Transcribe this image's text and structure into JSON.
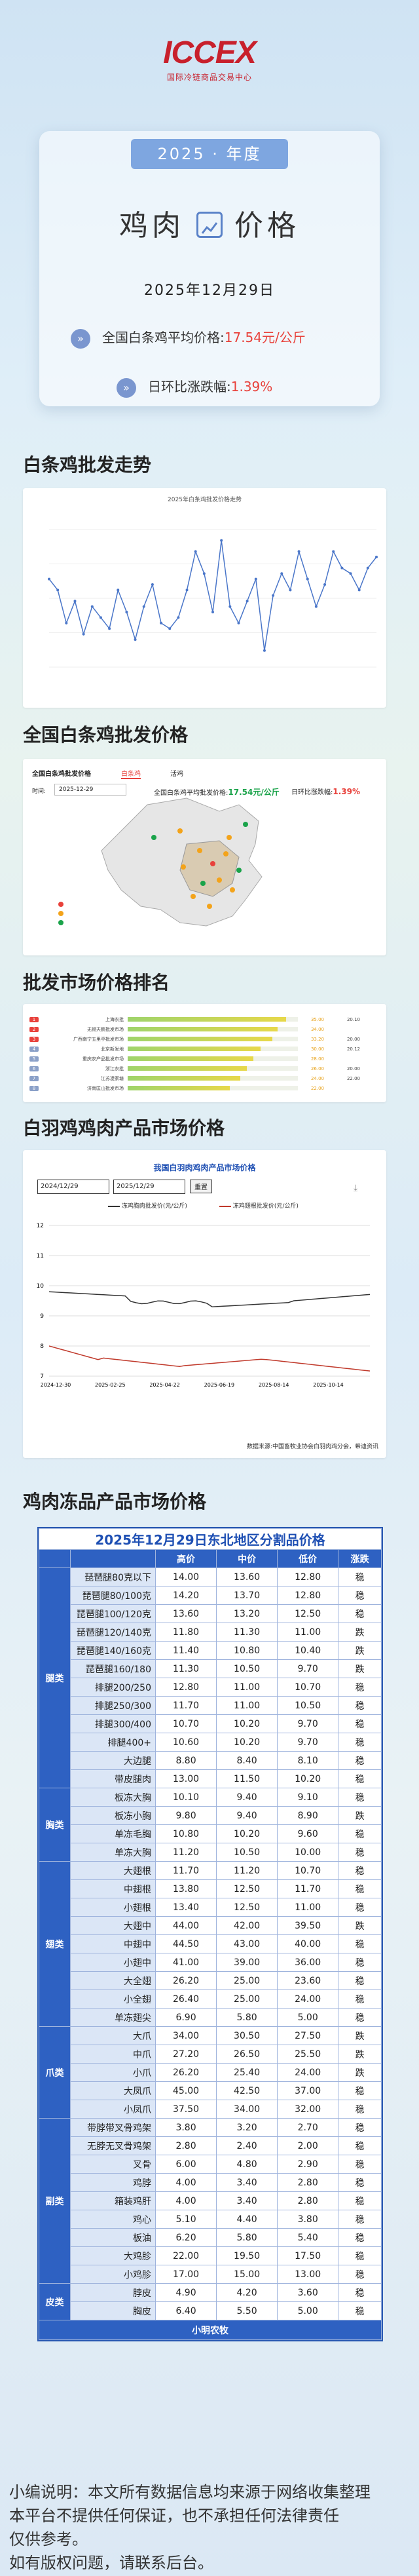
{
  "logo": {
    "mark": "ICCEX",
    "sub": "国际冷链商品交易中心"
  },
  "header": {
    "year_label": "2025 · 年度",
    "title_left": "鸡肉",
    "title_right": "价格",
    "date": "2025年12月29日",
    "avg_label": "全国白条鸡平均价格:",
    "avg_value": "17.54元/公斤",
    "change_label": "日环比涨跌幅:",
    "change_value": "1.39%"
  },
  "sections": {
    "trend": "白条鸡批发走势",
    "national": "全国白条鸡批发价格",
    "ranking": "批发市场价格排名",
    "broiler": "白羽鸡鸡肉产品市场价格",
    "frozen": "鸡肉冻品产品市场价格"
  },
  "trend_chart": {
    "title": "2025年白条鸡批发价格走势",
    "values": [
      17.1,
      16.9,
      16.3,
      16.7,
      16.1,
      16.6,
      16.4,
      16.2,
      16.9,
      16.5,
      16.0,
      16.6,
      17.0,
      16.3,
      16.2,
      16.4,
      16.9,
      17.6,
      17.2,
      16.5,
      17.8,
      16.6,
      16.3,
      16.7,
      17.1,
      15.8,
      16.8,
      17.2,
      16.9,
      17.6,
      17.1,
      16.6,
      17.0,
      17.6,
      17.3,
      17.2,
      16.9,
      17.3,
      17.5
    ]
  },
  "national_panel": {
    "tab_label": "全国白条鸡批发价格",
    "tab_a": "白条鸡",
    "tab_b": "活鸡",
    "date_label": "时间:",
    "date_value": "2025-12-29",
    "avg_label": "全国白条鸡平均批发价格:",
    "avg_value": "17.54元/公斤",
    "change_label": "日环比涨跌幅:",
    "change_value": "1.39%"
  },
  "ranking_panel": {
    "rows": [
      {
        "name": "上海农批",
        "value": "35.00",
        "change": "20.10",
        "fill": 0.93
      },
      {
        "name": "无锡天鹏批发市场",
        "value": "34.00",
        "change": "",
        "fill": 0.88
      },
      {
        "name": "广西南宁五里亭批发市场",
        "value": "33.20",
        "change": "20.00",
        "fill": 0.85
      },
      {
        "name": "北京新发地",
        "value": "30.00",
        "change": "20.12",
        "fill": 0.78
      },
      {
        "name": "重庆农产品批发市场",
        "value": "28.00",
        "change": "",
        "fill": 0.74
      },
      {
        "name": "浙江农批",
        "value": "26.00",
        "change": "20.00",
        "fill": 0.7
      },
      {
        "name": "江苏凌家塘",
        "value": "24.00",
        "change": "22.00",
        "fill": 0.66
      },
      {
        "name": "济南匡山批发市场",
        "value": "22.00",
        "change": "",
        "fill": 0.6
      }
    ]
  },
  "broiler_panel": {
    "title": "我国白羽肉鸡肉产品市场价格",
    "date_from": "2024/12/29",
    "date_to": "2025/12/29",
    "reset": "重置",
    "legend_a": "冻鸡胸肉批发价(元/公斤)",
    "legend_b": "冻鸡翅根批发价(元/公斤)",
    "source": "数据来源:中国畜牧业协会白羽肉鸡分会，希迪资讯",
    "x_ticks": [
      "2024-12-30",
      "2025-02-25",
      "2025-04-22",
      "2025-06-19",
      "2025-08-14",
      "2025-10-14"
    ],
    "y_ticks": [
      "12",
      "11",
      "10",
      "9",
      "8",
      "7"
    ]
  },
  "frozen_table": {
    "title": "2025年12月29日东北地区分割品价格",
    "columns": [
      "高价",
      "中价",
      "低价",
      "涨跌"
    ],
    "groups": [
      {
        "category": "腿类",
        "rows": [
          [
            "琵琶腿80克以下",
            "14.00",
            "13.60",
            "12.80",
            "稳"
          ],
          [
            "琵琶腿80/100克",
            "14.20",
            "13.70",
            "12.80",
            "稳"
          ],
          [
            "琵琶腿100/120克",
            "13.60",
            "13.20",
            "12.50",
            "稳"
          ],
          [
            "琵琶腿120/140克",
            "11.80",
            "11.30",
            "11.00",
            "跌"
          ],
          [
            "琵琶腿140/160克",
            "11.40",
            "10.80",
            "10.40",
            "跌"
          ],
          [
            "琵琶腿160/180",
            "11.30",
            "10.50",
            "9.70",
            "跌"
          ],
          [
            "排腿200/250",
            "12.80",
            "11.00",
            "10.70",
            "稳"
          ],
          [
            "排腿250/300",
            "11.70",
            "11.00",
            "10.50",
            "稳"
          ],
          [
            "排腿300/400",
            "10.70",
            "10.20",
            "9.70",
            "稳"
          ],
          [
            "排腿400+",
            "10.60",
            "10.20",
            "9.70",
            "稳"
          ],
          [
            "大边腿",
            "8.80",
            "8.40",
            "8.10",
            "稳"
          ],
          [
            "带皮腿肉",
            "13.00",
            "11.50",
            "10.20",
            "稳"
          ]
        ]
      },
      {
        "category": "胸类",
        "rows": [
          [
            "板冻大胸",
            "10.10",
            "9.40",
            "9.10",
            "稳"
          ],
          [
            "板冻小胸",
            "9.80",
            "9.40",
            "8.90",
            "跌"
          ],
          [
            "单冻毛胸",
            "10.80",
            "10.20",
            "9.60",
            "稳"
          ],
          [
            "单冻大胸",
            "11.20",
            "10.50",
            "10.00",
            "稳"
          ]
        ]
      },
      {
        "category": "翅类",
        "rows": [
          [
            "大翅根",
            "11.70",
            "11.20",
            "10.70",
            "稳"
          ],
          [
            "中翅根",
            "13.80",
            "12.50",
            "11.70",
            "稳"
          ],
          [
            "小翅根",
            "13.40",
            "12.50",
            "11.00",
            "稳"
          ],
          [
            "大翅中",
            "44.00",
            "42.00",
            "39.50",
            "跌"
          ],
          [
            "中翅中",
            "44.50",
            "43.00",
            "40.00",
            "稳"
          ],
          [
            "小翅中",
            "41.00",
            "39.00",
            "36.00",
            "稳"
          ],
          [
            "大全翅",
            "26.20",
            "25.00",
            "23.60",
            "稳"
          ],
          [
            "小全翅",
            "26.40",
            "25.00",
            "24.00",
            "稳"
          ],
          [
            "单冻翅尖",
            "6.90",
            "5.80",
            "5.00",
            "稳"
          ]
        ]
      },
      {
        "category": "爪类",
        "rows": [
          [
            "大爪",
            "34.00",
            "30.50",
            "27.50",
            "跌"
          ],
          [
            "中爪",
            "27.20",
            "26.50",
            "25.50",
            "跌"
          ],
          [
            "小爪",
            "26.20",
            "25.40",
            "24.00",
            "跌"
          ],
          [
            "大凤爪",
            "45.00",
            "42.50",
            "37.00",
            "稳"
          ],
          [
            "小凤爪",
            "37.50",
            "34.00",
            "32.00",
            "稳"
          ]
        ]
      },
      {
        "category": "副类",
        "rows": [
          [
            "带脖带叉骨鸡架",
            "3.80",
            "3.20",
            "2.70",
            "稳"
          ],
          [
            "无脖无叉骨鸡架",
            "2.80",
            "2.40",
            "2.00",
            "稳"
          ],
          [
            "叉骨",
            "6.00",
            "4.80",
            "2.90",
            "稳"
          ],
          [
            "鸡脖",
            "4.00",
            "3.40",
            "2.80",
            "稳"
          ],
          [
            "箱装鸡肝",
            "4.00",
            "3.40",
            "2.80",
            "稳"
          ],
          [
            "鸡心",
            "5.10",
            "4.40",
            "3.80",
            "稳"
          ],
          [
            "板油",
            "6.20",
            "5.80",
            "5.40",
            "稳"
          ],
          [
            "大鸡胗",
            "22.00",
            "19.50",
            "17.50",
            "稳"
          ],
          [
            "小鸡胗",
            "17.00",
            "15.00",
            "13.00",
            "稳"
          ]
        ]
      },
      {
        "category": "皮类",
        "rows": [
          [
            "脖皮",
            "4.90",
            "4.20",
            "3.60",
            "稳"
          ],
          [
            "胸皮",
            "6.40",
            "5.50",
            "5.00",
            "稳"
          ]
        ]
      }
    ],
    "footer": "小明农牧"
  },
  "caption": {
    "line1": "小编说明：本文所有数据信息均来源于网络收集整理",
    "line2": "本平台不提供任何保证，也不承担任何法律责任",
    "line3": "仅供参考。",
    "line4": "如有版权问题，请联系后台。"
  },
  "colors": {
    "accent": "#2e61c2",
    "up_red": "#e8413b",
    "pill": "#7ea6e0",
    "logo": "#c8202c"
  }
}
